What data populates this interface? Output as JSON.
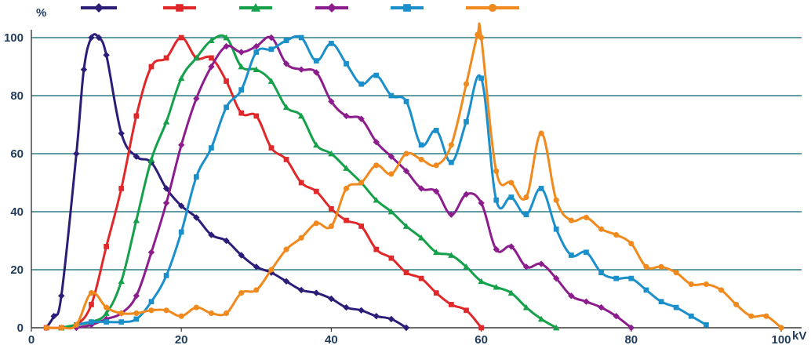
{
  "chart_data": {
    "type": "line",
    "title": "",
    "xlabel": "kV",
    "ylabel": "%",
    "xlim": [
      0,
      100
    ],
    "ylim": [
      0,
      100
    ],
    "x_ticks": [
      0,
      20,
      40,
      60,
      80,
      100
    ],
    "y_ticks": [
      0,
      20,
      40,
      60,
      80,
      100
    ],
    "x_tick_labels": [
      "0",
      "20",
      "40",
      "60",
      "80",
      "100"
    ],
    "y_tick_labels": [
      "0",
      "20",
      "40",
      "60",
      "80",
      "100"
    ],
    "grid": "horizontal",
    "legend": "top",
    "colors": {
      "grid": "#2f7f86",
      "axis": "#3a3a3a",
      "text": "#1f3b5c"
    },
    "series": [
      {
        "color": "#2b1d78",
        "marker": "diamond",
        "points": [
          [
            2,
            0
          ],
          [
            3,
            4
          ],
          [
            4,
            11
          ],
          [
            6,
            60
          ],
          [
            7,
            89
          ],
          [
            8,
            100
          ],
          [
            9,
            100
          ],
          [
            10,
            94
          ],
          [
            12,
            67
          ],
          [
            14,
            59
          ],
          [
            16,
            57
          ],
          [
            18,
            48
          ],
          [
            20,
            42
          ],
          [
            22,
            38
          ],
          [
            24,
            32
          ],
          [
            26,
            30
          ],
          [
            28,
            25
          ],
          [
            30,
            21
          ],
          [
            32,
            19
          ],
          [
            34,
            16
          ],
          [
            36,
            13
          ],
          [
            38,
            12
          ],
          [
            40,
            10
          ],
          [
            42,
            7
          ],
          [
            44,
            6
          ],
          [
            46,
            4
          ],
          [
            48,
            3
          ],
          [
            50,
            0
          ]
        ]
      },
      {
        "color": "#e0282b",
        "marker": "square",
        "points": [
          [
            2,
            0
          ],
          [
            4,
            0
          ],
          [
            6,
            1
          ],
          [
            8,
            8
          ],
          [
            10,
            28
          ],
          [
            12,
            48
          ],
          [
            14,
            73
          ],
          [
            16,
            90
          ],
          [
            18,
            93
          ],
          [
            20,
            100
          ],
          [
            22,
            93
          ],
          [
            24,
            93
          ],
          [
            26,
            85
          ],
          [
            28,
            74
          ],
          [
            30,
            73
          ],
          [
            32,
            62
          ],
          [
            34,
            58
          ],
          [
            36,
            50
          ],
          [
            38,
            47
          ],
          [
            40,
            41
          ],
          [
            42,
            37
          ],
          [
            44,
            35
          ],
          [
            46,
            27
          ],
          [
            48,
            24
          ],
          [
            50,
            19
          ],
          [
            52,
            17
          ],
          [
            54,
            12
          ],
          [
            56,
            8
          ],
          [
            58,
            6
          ],
          [
            60,
            0
          ]
        ]
      },
      {
        "color": "#15a04a",
        "marker": "triangle",
        "points": [
          [
            4,
            0
          ],
          [
            6,
            1
          ],
          [
            8,
            2
          ],
          [
            10,
            5
          ],
          [
            12,
            16
          ],
          [
            14,
            37
          ],
          [
            16,
            58
          ],
          [
            18,
            71
          ],
          [
            20,
            86
          ],
          [
            22,
            93
          ],
          [
            24,
            99
          ],
          [
            26,
            100
          ],
          [
            28,
            90
          ],
          [
            30,
            89
          ],
          [
            32,
            85
          ],
          [
            34,
            76
          ],
          [
            36,
            73
          ],
          [
            38,
            63
          ],
          [
            40,
            60
          ],
          [
            42,
            55
          ],
          [
            44,
            50
          ],
          [
            46,
            44
          ],
          [
            48,
            40
          ],
          [
            50,
            35
          ],
          [
            52,
            31
          ],
          [
            54,
            26
          ],
          [
            56,
            25
          ],
          [
            58,
            21
          ],
          [
            60,
            16
          ],
          [
            62,
            14
          ],
          [
            64,
            12
          ],
          [
            66,
            7
          ],
          [
            68,
            3
          ],
          [
            70,
            0
          ]
        ]
      },
      {
        "color": "#8c1d8c",
        "marker": "diamond",
        "points": [
          [
            6,
            0
          ],
          [
            8,
            1
          ],
          [
            10,
            3
          ],
          [
            12,
            5
          ],
          [
            14,
            11
          ],
          [
            16,
            26
          ],
          [
            18,
            43
          ],
          [
            20,
            63
          ],
          [
            22,
            79
          ],
          [
            24,
            90
          ],
          [
            26,
            97
          ],
          [
            28,
            95
          ],
          [
            30,
            97
          ],
          [
            32,
            100
          ],
          [
            34,
            91
          ],
          [
            36,
            89
          ],
          [
            38,
            88
          ],
          [
            40,
            78
          ],
          [
            42,
            73
          ],
          [
            44,
            72
          ],
          [
            46,
            64
          ],
          [
            48,
            59
          ],
          [
            50,
            54
          ],
          [
            52,
            48
          ],
          [
            54,
            47
          ],
          [
            56,
            39
          ],
          [
            58,
            46
          ],
          [
            60,
            43
          ],
          [
            62,
            27
          ],
          [
            64,
            28
          ],
          [
            66,
            21
          ],
          [
            68,
            22
          ],
          [
            70,
            17
          ],
          [
            72,
            11
          ],
          [
            74,
            9
          ],
          [
            76,
            7
          ],
          [
            78,
            4
          ],
          [
            80,
            0
          ]
        ]
      },
      {
        "color": "#1b8fca",
        "marker": "square",
        "points": [
          [
            6,
            1
          ],
          [
            8,
            2
          ],
          [
            10,
            2
          ],
          [
            12,
            2
          ],
          [
            14,
            3
          ],
          [
            16,
            9
          ],
          [
            18,
            18
          ],
          [
            20,
            33
          ],
          [
            22,
            52
          ],
          [
            24,
            62
          ],
          [
            26,
            76
          ],
          [
            28,
            82
          ],
          [
            30,
            95
          ],
          [
            32,
            96
          ],
          [
            34,
            99
          ],
          [
            36,
            100
          ],
          [
            38,
            92
          ],
          [
            40,
            98
          ],
          [
            42,
            91
          ],
          [
            44,
            84
          ],
          [
            46,
            87
          ],
          [
            48,
            80
          ],
          [
            50,
            78
          ],
          [
            52,
            63
          ],
          [
            54,
            68
          ],
          [
            56,
            57
          ],
          [
            58,
            71
          ],
          [
            60,
            86
          ],
          [
            62,
            44
          ],
          [
            64,
            45
          ],
          [
            66,
            39
          ],
          [
            68,
            48
          ],
          [
            70,
            34
          ],
          [
            72,
            25
          ],
          [
            74,
            26
          ],
          [
            76,
            19
          ],
          [
            78,
            17
          ],
          [
            80,
            17
          ],
          [
            82,
            13
          ],
          [
            84,
            9
          ],
          [
            86,
            7
          ],
          [
            88,
            4
          ],
          [
            90,
            1
          ]
        ]
      },
      {
        "color": "#f08a1e",
        "marker": "circle",
        "points": [
          [
            2,
            0
          ],
          [
            4,
            0
          ],
          [
            6,
            1
          ],
          [
            8,
            12
          ],
          [
            10,
            7
          ],
          [
            12,
            5
          ],
          [
            14,
            5
          ],
          [
            16,
            6
          ],
          [
            18,
            6
          ],
          [
            20,
            4
          ],
          [
            22,
            7
          ],
          [
            24,
            5
          ],
          [
            26,
            5
          ],
          [
            28,
            12
          ],
          [
            30,
            13
          ],
          [
            32,
            20
          ],
          [
            34,
            27
          ],
          [
            36,
            31
          ],
          [
            38,
            36
          ],
          [
            40,
            35
          ],
          [
            42,
            48
          ],
          [
            44,
            50
          ],
          [
            46,
            56
          ],
          [
            48,
            53
          ],
          [
            50,
            60
          ],
          [
            52,
            58
          ],
          [
            54,
            56
          ],
          [
            56,
            63
          ],
          [
            58,
            84
          ],
          [
            59.5,
            101
          ],
          [
            60,
            100
          ],
          [
            62,
            54
          ],
          [
            64,
            50
          ],
          [
            66,
            45
          ],
          [
            68,
            67
          ],
          [
            70,
            44
          ],
          [
            72,
            37
          ],
          [
            74,
            38
          ],
          [
            76,
            34
          ],
          [
            78,
            32
          ],
          [
            80,
            29
          ],
          [
            82,
            21
          ],
          [
            84,
            21
          ],
          [
            86,
            19
          ],
          [
            88,
            15
          ],
          [
            90,
            15
          ],
          [
            92,
            13
          ],
          [
            94,
            8
          ],
          [
            96,
            4
          ],
          [
            98,
            4
          ],
          [
            100,
            0
          ]
        ]
      }
    ]
  }
}
